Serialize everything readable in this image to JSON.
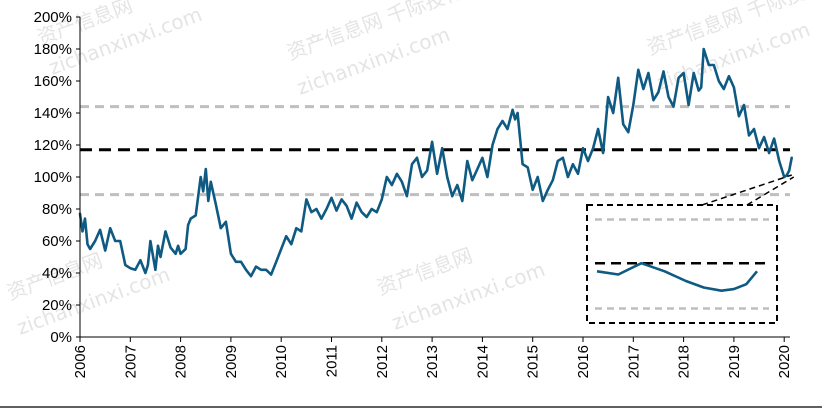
{
  "chart_data": {
    "type": "line",
    "title": "",
    "xlabel": "",
    "ylabel": "",
    "x_ticks": [
      "2006",
      "2007",
      "2008",
      "2009",
      "2010",
      "2011",
      "2012",
      "2013",
      "2014",
      "2015",
      "2016",
      "2017",
      "2018",
      "2019",
      "2020"
    ],
    "y_ticks": [
      "0%",
      "20%",
      "40%",
      "60%",
      "80%",
      "100%",
      "120%",
      "140%",
      "160%",
      "180%",
      "200%"
    ],
    "xlim": [
      2006.0,
      2020.2
    ],
    "ylim": [
      0,
      200
    ],
    "grid": false,
    "colors": {
      "series": "#0f5a82",
      "mean_line": "#000000",
      "band_lines": "#bfbfbf",
      "axis": "#000000"
    },
    "reference_lines": [
      {
        "style": "black-dashed",
        "value": 117
      },
      {
        "style": "gray-dashed",
        "value": 144
      },
      {
        "style": "gray-dashed",
        "value": 89
      }
    ],
    "series": [
      {
        "x": [
          2006.0,
          2006.05,
          2006.1,
          2006.15,
          2006.2,
          2006.3,
          2006.4,
          2006.5,
          2006.6,
          2006.7,
          2006.8,
          2006.9,
          2007.0,
          2007.1,
          2007.2,
          2007.3,
          2007.35,
          2007.4,
          2007.5,
          2007.55,
          2007.6,
          2007.7,
          2007.8,
          2007.9,
          2007.95,
          2008.0,
          2008.1,
          2008.15,
          2008.2,
          2008.3,
          2008.4,
          2008.45,
          2008.5,
          2008.55,
          2008.6,
          2008.7,
          2008.8,
          2008.9,
          2009.0,
          2009.1,
          2009.2,
          2009.3,
          2009.4,
          2009.5,
          2009.6,
          2009.7,
          2009.8,
          2009.9,
          2010.0,
          2010.1,
          2010.2,
          2010.3,
          2010.4,
          2010.5,
          2010.6,
          2010.7,
          2010.8,
          2010.9,
          2011.0,
          2011.1,
          2011.2,
          2011.3,
          2011.4,
          2011.5,
          2011.6,
          2011.7,
          2011.8,
          2011.9,
          2012.0,
          2012.1,
          2012.2,
          2012.3,
          2012.4,
          2012.5,
          2012.6,
          2012.7,
          2012.8,
          2012.9,
          2013.0,
          2013.1,
          2013.2,
          2013.3,
          2013.4,
          2013.5,
          2013.6,
          2013.7,
          2013.8,
          2013.9,
          2014.0,
          2014.1,
          2014.2,
          2014.3,
          2014.4,
          2014.5,
          2014.6,
          2014.65,
          2014.7,
          2014.8,
          2014.9,
          2015.0,
          2015.1,
          2015.2,
          2015.3,
          2015.4,
          2015.5,
          2015.6,
          2015.7,
          2015.8,
          2015.9,
          2016.0,
          2016.1,
          2016.2,
          2016.3,
          2016.4,
          2016.5,
          2016.6,
          2016.7,
          2016.8,
          2016.9,
          2017.0,
          2017.1,
          2017.2,
          2017.3,
          2017.4,
          2017.5,
          2017.6,
          2017.7,
          2017.8,
          2017.9,
          2018.0,
          2018.1,
          2018.2,
          2018.3,
          2018.35,
          2018.4,
          2018.5,
          2018.6,
          2018.7,
          2018.8,
          2018.9,
          2019.0,
          2019.1,
          2019.2,
          2019.3,
          2019.4,
          2019.5,
          2019.6,
          2019.7,
          2019.8,
          2019.85,
          2019.9,
          2020.0,
          2020.05,
          2020.1,
          2020.15
        ],
        "y": [
          77,
          66,
          74,
          58,
          55,
          60,
          67,
          54,
          68,
          60,
          60,
          45,
          43,
          42,
          48,
          40,
          45,
          60,
          42,
          57,
          50,
          66,
          56,
          52,
          57,
          52,
          55,
          70,
          74,
          76,
          100,
          91,
          105,
          85,
          97,
          83,
          68,
          72,
          52,
          47,
          47,
          42,
          38,
          44,
          42,
          42,
          39,
          47,
          55,
          63,
          58,
          68,
          66,
          86,
          78,
          80,
          74,
          80,
          87,
          79,
          86,
          82,
          74,
          84,
          78,
          75,
          80,
          78,
          86,
          100,
          95,
          102,
          97,
          88,
          108,
          112,
          100,
          104,
          122,
          102,
          118,
          100,
          88,
          95,
          85,
          110,
          98,
          105,
          112,
          100,
          120,
          130,
          135,
          130,
          142,
          136,
          140,
          108,
          106,
          92,
          100,
          85,
          92,
          98,
          110,
          112,
          100,
          108,
          102,
          118,
          110,
          118,
          130,
          115,
          150,
          140,
          162,
          133,
          128,
          145,
          167,
          155,
          165,
          148,
          153,
          166,
          150,
          144,
          162,
          165,
          145,
          165,
          154,
          156,
          180,
          170,
          170,
          160,
          155,
          163,
          156,
          138,
          145,
          126,
          130,
          118,
          125,
          115,
          124,
          117,
          110,
          100,
          101,
          104,
          112
        ]
      }
    ]
  },
  "inset": {
    "label": "zoom-inset",
    "x": [
      2019.3,
      2019.42,
      2019.55,
      2019.68,
      2019.8,
      2019.9,
      2020.0,
      2020.07,
      2020.14,
      2020.2
    ],
    "y": [
      112,
      110,
      117,
      112,
      106,
      102,
      100,
      101,
      104,
      112
    ]
  },
  "watermarks": [
    "资产信息网",
    "zichanxinxi.com",
    "资产信息网 千际投行",
    "zichanxinxi.com",
    "资产信息网 千际投行",
    "zichanxinxi.com",
    "资产信息网",
    "zichanxinxi.com",
    "资产信息网",
    "zichanxinxi.com"
  ]
}
